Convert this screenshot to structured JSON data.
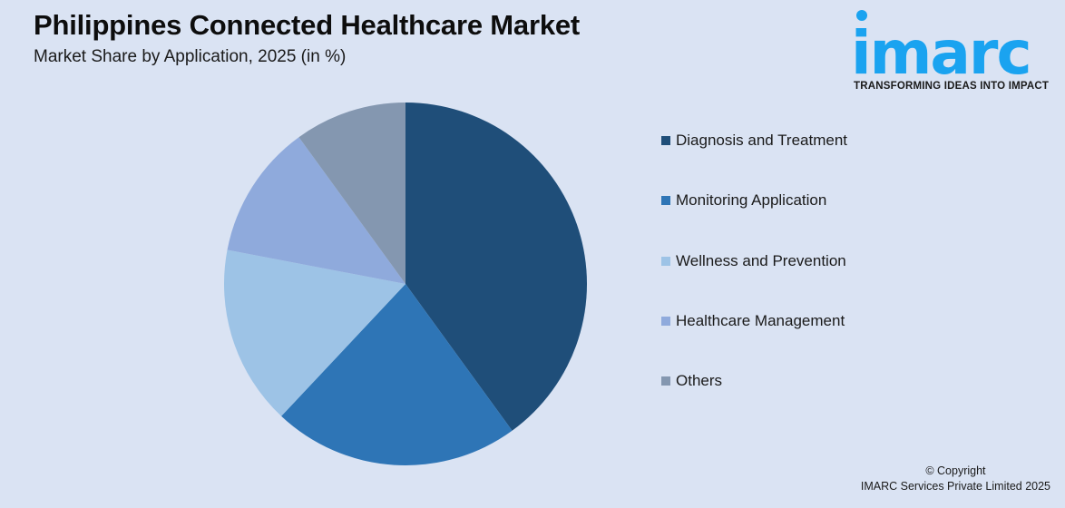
{
  "header": {
    "title": "Philippines Connected Healthcare Market",
    "subtitle": "Market Share by Application, 2025 (in %)"
  },
  "logo": {
    "wordmark": "imarc",
    "tagline": "TRANSFORMING IDEAS INTO IMPACT",
    "color": "#1aa3f0"
  },
  "legend": {
    "items": [
      {
        "label": "Diagnosis and Treatment",
        "color": "#1f4e79"
      },
      {
        "label": "Monitoring Application",
        "color": "#2e75b6"
      },
      {
        "label": "Wellness and Prevention",
        "color": "#9dc3e6"
      },
      {
        "label": "Healthcare Management",
        "color": "#8faadc"
      },
      {
        "label": "Others",
        "color": "#8497b0"
      }
    ]
  },
  "footer": {
    "copyright_line1": "© Copyright",
    "copyright_line2": "IMARC Services Private Limited 2025"
  },
  "chart_data": {
    "type": "pie",
    "title": "Philippines Connected Healthcare Market",
    "subtitle": "Market Share by Application, 2025 (in %)",
    "categories": [
      "Diagnosis and Treatment",
      "Monitoring Application",
      "Wellness and Prevention",
      "Healthcare Management",
      "Others"
    ],
    "values": [
      40,
      22,
      16,
      12,
      10
    ],
    "colors": [
      "#1f4e79",
      "#2e75b6",
      "#9dc3e6",
      "#8faadc",
      "#8497b0"
    ],
    "start_angle": "12 o'clock, clockwise",
    "legend_position": "right",
    "data_labels": false
  }
}
